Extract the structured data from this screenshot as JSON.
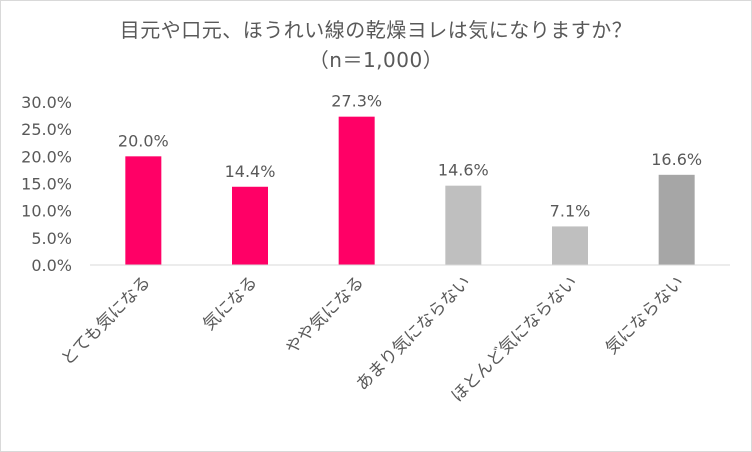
{
  "chart_data": {
    "type": "bar",
    "title": "目元や口元、ほうれい線の乾燥ヨレは気になりますか？",
    "subtitle": "（n＝1,000）",
    "xlabel": "",
    "ylabel": "",
    "ylim": [
      0,
      30
    ],
    "yticks": [
      "0.0%",
      "5.0%",
      "10.0%",
      "15.0%",
      "20.0%",
      "25.0%",
      "30.0%"
    ],
    "grid": false,
    "legend": "none",
    "categories": [
      "とても気になる",
      "気になる",
      "やや気になる",
      "あまり気にならない",
      "ほとんど気にならない",
      "気にならない"
    ],
    "values": [
      20.0,
      14.4,
      27.3,
      14.6,
      7.1,
      16.6
    ],
    "value_labels": [
      "20.0%",
      "14.4%",
      "27.3%",
      "14.6%",
      "7.1%",
      "16.6%"
    ],
    "colors": [
      "#ff0066",
      "#ff0066",
      "#ff0066",
      "#bfbfbf",
      "#bfbfbf",
      "#a6a6a6"
    ]
  }
}
